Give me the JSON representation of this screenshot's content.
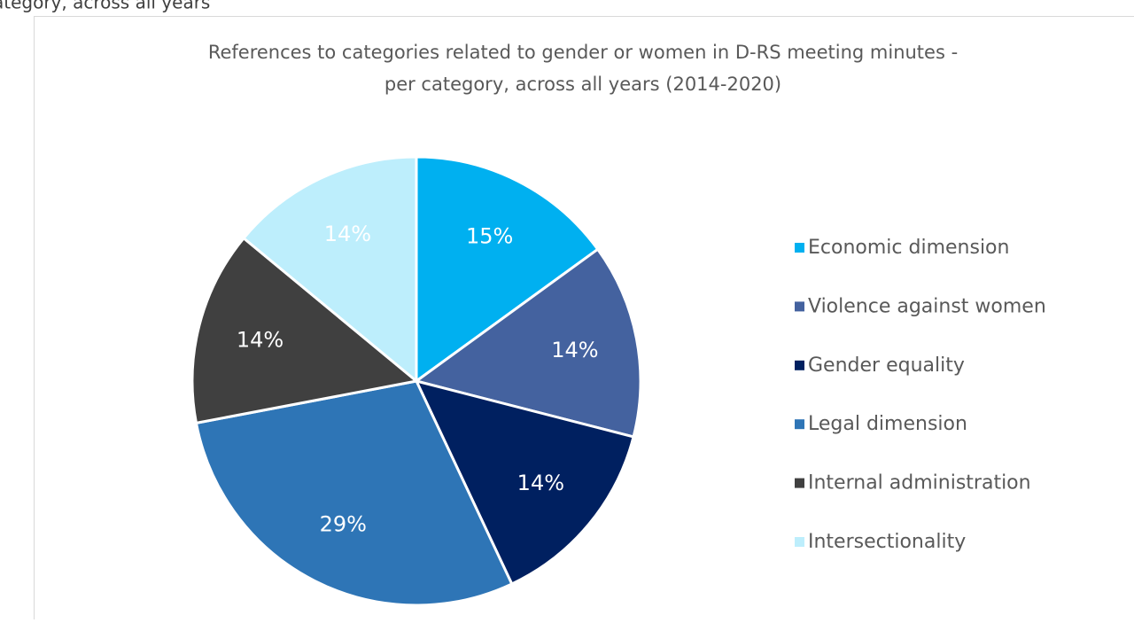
{
  "fragment": "ategory, across all years",
  "chart_data": {
    "type": "pie",
    "title": [
      "References to categories related to gender or women in D-RS meeting minutes -",
      "per category, across all years (2014-2020)"
    ],
    "categories": [
      "Economic dimension",
      "Violence against women",
      "Gender equality",
      "Legal dimension",
      "Internal administration",
      "Intersectionality"
    ],
    "values": [
      15,
      14,
      14,
      29,
      14,
      14
    ],
    "value_labels": [
      "15%",
      "14%",
      "14%",
      "29%",
      "14%",
      "14%"
    ],
    "colors": [
      "#00b0f0",
      "#44629f",
      "#002060",
      "#2e75b6",
      "#404040",
      "#bdeefc"
    ],
    "legend": "right"
  }
}
